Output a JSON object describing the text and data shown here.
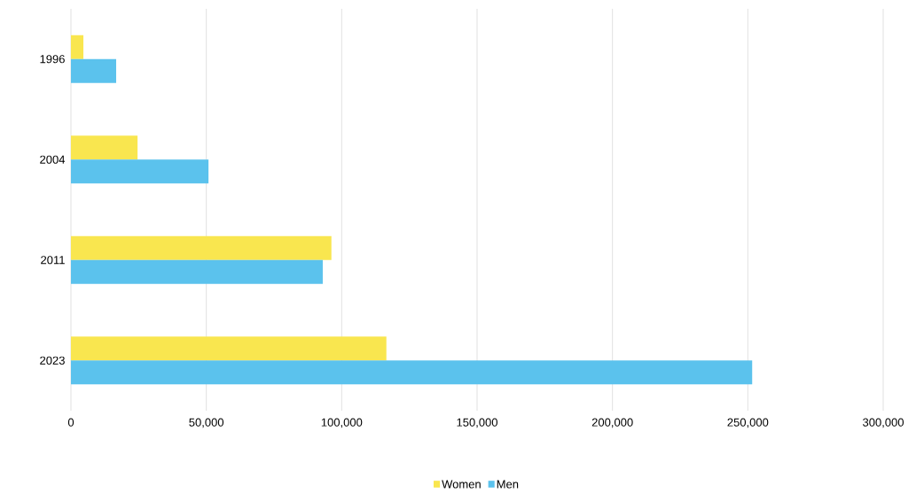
{
  "chart_data": {
    "type": "bar",
    "orientation": "horizontal",
    "categories": [
      "1996",
      "2004",
      "2011",
      "2023"
    ],
    "series": [
      {
        "name": "Women",
        "color": "#f9e64f",
        "values": [
          4600,
          24600,
          96200,
          116500
        ]
      },
      {
        "name": "Men",
        "color": "#5bc2ed",
        "values": [
          16700,
          50800,
          93000,
          251600
        ]
      }
    ],
    "xlim": [
      0,
      300000
    ],
    "xticks": [
      0,
      {
        "value": 50000,
        "label": "50,000"
      },
      {
        "value": 100000,
        "label": "100,000"
      },
      {
        "value": 150000,
        "label": "150,000"
      },
      {
        "value": 200000,
        "label": "200,000"
      },
      {
        "value": 250000,
        "label": "250,000"
      },
      {
        "value": 300000,
        "label": "300,000"
      }
    ],
    "grid": "x",
    "legend": "bottom"
  }
}
